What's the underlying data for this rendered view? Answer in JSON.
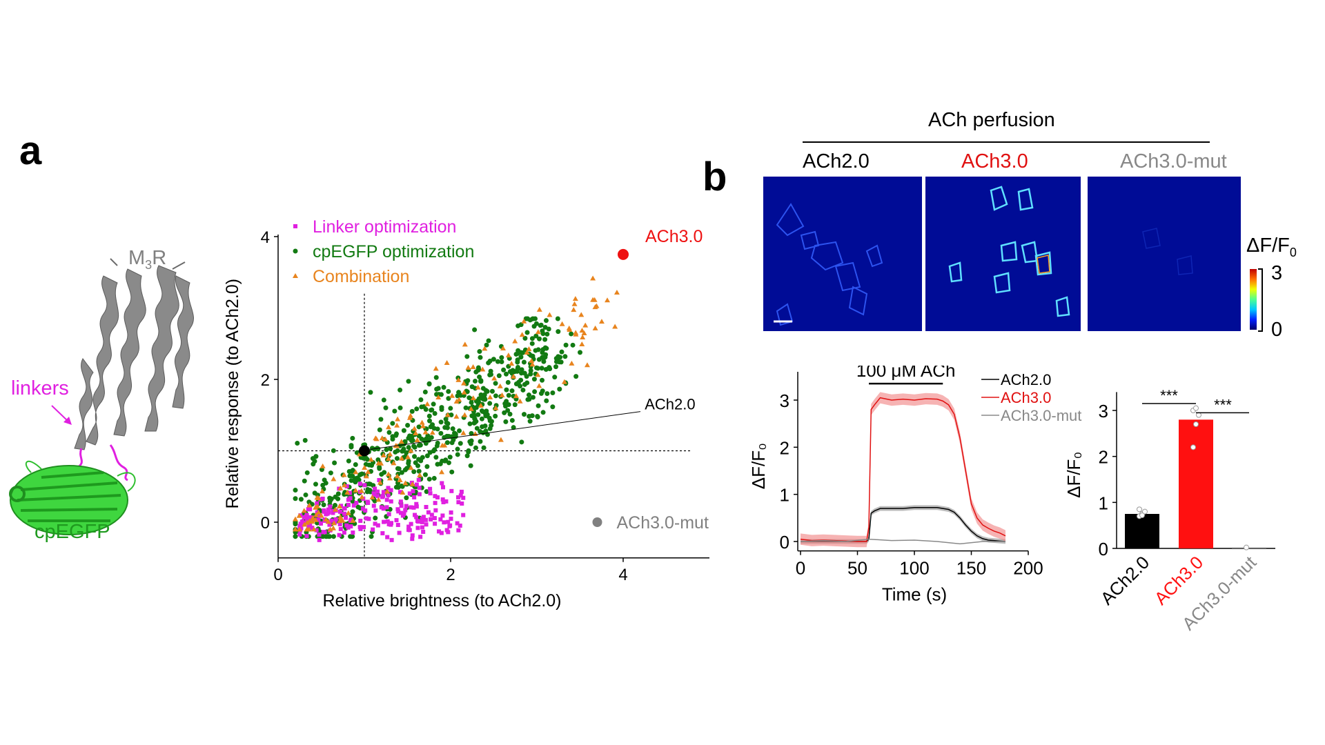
{
  "figure": {
    "panel_a_label": "a",
    "panel_b_label": "b"
  },
  "structure": {
    "receptor_label_main": "M",
    "receptor_label_sub": "3",
    "receptor_label_end": "R",
    "linkers_label": "linkers",
    "fp_label": "cpEGFP",
    "colors": {
      "receptor": "#808080",
      "linker": "#e020e0",
      "fp": "#33cc33"
    }
  },
  "imaging": {
    "header": "ACh perfusion",
    "panels": [
      {
        "label": "ACh2.0",
        "color": "#000000"
      },
      {
        "label": "ACh3.0",
        "color": "#e01010"
      },
      {
        "label": "ACh3.0-mut",
        "color": "#888888"
      }
    ],
    "colorbar": {
      "label": "ΔF/F",
      "label_sub": "0",
      "max": "3",
      "min": "0"
    }
  },
  "chart_data": [
    {
      "type": "scatter",
      "title": "",
      "xlabel": "Relative brightness (to ACh2.0)",
      "ylabel": "Relative response (to ACh2.0)",
      "xlim": [
        0,
        5
      ],
      "ylim": [
        -0.5,
        4.2
      ],
      "xticks": [
        "0",
        "2",
        "4"
      ],
      "yticks": [
        "0",
        "2",
        "4"
      ],
      "reference_lines": {
        "x": 1,
        "y": 1
      },
      "legend": {
        "position": "top-left",
        "entries": [
          {
            "name": "Linker optimization",
            "color": "#e020e0",
            "marker": "square"
          },
          {
            "name": "cpEGFP optimization",
            "color": "#127a12",
            "marker": "circle"
          },
          {
            "name": "Combination",
            "color": "#e8841e",
            "marker": "triangle"
          }
        ]
      },
      "annotations": [
        {
          "label": "ACh3.0",
          "x": 4.0,
          "y": 3.75,
          "color": "#ee1111"
        },
        {
          "label": "ACh2.0",
          "x": 1.0,
          "y": 1.0,
          "color": "#000000"
        },
        {
          "label": "ACh3.0-mut",
          "x": 3.7,
          "y": 0.0,
          "color": "#808080"
        }
      ],
      "series": [
        {
          "name": "Linker optimization",
          "color": "#e020e0",
          "marker": "square",
          "cluster": {
            "x_range": [
              0.2,
              2.3
            ],
            "y_range": [
              -0.25,
              1.1
            ],
            "n": 220
          }
        },
        {
          "name": "cpEGFP optimization",
          "color": "#127a12",
          "marker": "circle",
          "cluster": {
            "x_range": [
              0.2,
              3.5
            ],
            "y_range": [
              -0.2,
              2.85
            ],
            "n": 650
          }
        },
        {
          "name": "Combination",
          "color": "#e8841e",
          "marker": "triangle",
          "cluster": {
            "x_range": [
              0.2,
              4.1
            ],
            "y_range": [
              -0.1,
              3.45
            ],
            "n": 170
          }
        }
      ]
    },
    {
      "type": "line",
      "title": "",
      "xlabel": "Time (s)",
      "ylabel": "ΔF/F0",
      "xlim": [
        0,
        200
      ],
      "ylim": [
        -0.2,
        3.5
      ],
      "xticks": [
        "0",
        "50",
        "100",
        "150",
        "200"
      ],
      "yticks": [
        "0",
        "1",
        "2",
        "3"
      ],
      "stimulus": {
        "label": "100 μM ACh",
        "start": 60,
        "end": 125
      },
      "legend": {
        "position": "top-right"
      },
      "series": [
        {
          "name": "ACh2.0",
          "color": "#000000",
          "x": [
            0,
            10,
            20,
            30,
            40,
            50,
            58,
            60,
            62,
            65,
            70,
            80,
            90,
            100,
            110,
            120,
            125,
            130,
            135,
            140,
            145,
            150,
            155,
            160,
            165,
            170,
            175,
            180
          ],
          "y": [
            0,
            0,
            0,
            0,
            0,
            0,
            0,
            0.05,
            0.6,
            0.65,
            0.7,
            0.7,
            0.7,
            0.72,
            0.72,
            0.72,
            0.7,
            0.68,
            0.62,
            0.5,
            0.35,
            0.22,
            0.12,
            0.06,
            0.03,
            0.02,
            0.01,
            0.0
          ]
        },
        {
          "name": "ACh3.0",
          "color": "#e01010",
          "x": [
            0,
            10,
            20,
            30,
            40,
            50,
            58,
            60,
            62,
            65,
            70,
            80,
            90,
            100,
            110,
            120,
            125,
            130,
            135,
            140,
            145,
            150,
            155,
            160,
            165,
            170,
            175,
            180
          ],
          "y": [
            0.05,
            0.02,
            0.03,
            0.02,
            0.01,
            0.0,
            0.0,
            0.3,
            2.8,
            2.9,
            3.05,
            3.0,
            3.02,
            3.0,
            3.03,
            3.02,
            2.98,
            2.9,
            2.7,
            2.2,
            1.5,
            0.8,
            0.5,
            0.35,
            0.28,
            0.22,
            0.18,
            0.12
          ]
        },
        {
          "name": "ACh3.0-mut",
          "color": "#888888",
          "x": [
            0,
            20,
            40,
            60,
            80,
            100,
            120,
            140,
            160,
            180
          ],
          "y": [
            0,
            0.02,
            0.0,
            0.05,
            0.02,
            0.03,
            0.0,
            -0.05,
            0.0,
            0.0
          ]
        }
      ]
    },
    {
      "type": "bar",
      "title": "",
      "xlabel": "",
      "ylabel": "ΔF/F0",
      "categories": [
        "ACh2.0",
        "ACh3.0",
        "ACh3.0-mut"
      ],
      "category_colors": [
        "#000000",
        "#ff1010",
        "#888888"
      ],
      "values": [
        0.75,
        2.8,
        0.02
      ],
      "points": [
        [
          0.7,
          0.75,
          0.8,
          0.85,
          0.72
        ],
        [
          2.2,
          2.7,
          2.9,
          3.0,
          3.05
        ],
        [
          0.02
        ]
      ],
      "ylim": [
        0,
        3.4
      ],
      "yticks": [
        "0",
        "1",
        "2",
        "3"
      ],
      "significance": [
        {
          "from": "ACh2.0",
          "to": "ACh3.0",
          "label": "***"
        },
        {
          "from": "ACh3.0",
          "to": "ACh3.0-mut",
          "label": "***"
        }
      ]
    }
  ]
}
